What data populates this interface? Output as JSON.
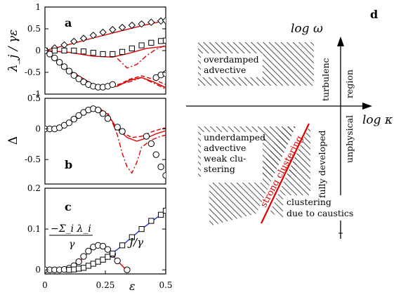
{
  "colors": {
    "axis": "#000000",
    "fit_red": "#dd0000",
    "fit_blue": "#1a33dd",
    "hatch": "#222222"
  },
  "chart_data": [
    {
      "type": "scatter",
      "panel": "a",
      "ylabel": "λ_j / γε",
      "xlim": [
        0,
        0.5
      ],
      "ylim": [
        -1,
        1
      ],
      "yticks": [
        "1",
        "0.5",
        "0",
        "-0.5",
        "-1"
      ],
      "series": [
        {
          "marker": "diamond",
          "x": [
            0.0,
            0.04,
            0.08,
            0.12,
            0.16,
            0.2,
            0.24,
            0.28,
            0.32,
            0.36,
            0.4,
            0.44,
            0.48,
            0.5
          ],
          "y": [
            0.0,
            0.06,
            0.13,
            0.21,
            0.28,
            0.35,
            0.42,
            0.48,
            0.53,
            0.58,
            0.61,
            0.65,
            0.68,
            0.69
          ]
        },
        {
          "marker": "square",
          "x": [
            0.0,
            0.04,
            0.08,
            0.12,
            0.16,
            0.2,
            0.24,
            0.28,
            0.32,
            0.36,
            0.4,
            0.44,
            0.48,
            0.5
          ],
          "y": [
            0.0,
            0.0,
            0.0,
            0.0,
            -0.02,
            -0.05,
            -0.08,
            -0.08,
            -0.03,
            0.05,
            0.12,
            0.18,
            0.22,
            0.23
          ]
        },
        {
          "marker": "circle",
          "x": [
            0.0,
            0.02,
            0.04,
            0.06,
            0.08,
            0.1,
            0.12,
            0.14,
            0.16,
            0.18,
            0.2,
            0.22,
            0.24,
            0.26,
            0.28,
            0.46,
            0.48,
            0.5
          ],
          "y": [
            0.0,
            -0.08,
            -0.17,
            -0.27,
            -0.37,
            -0.47,
            -0.57,
            -0.65,
            -0.72,
            -0.78,
            -0.82,
            -0.84,
            -0.84,
            -0.82,
            -0.78,
            -0.62,
            -0.56,
            -0.53
          ]
        }
      ],
      "fits": [
        {
          "style": "solid",
          "x": [
            0.0,
            0.1,
            0.2,
            0.3,
            0.4,
            0.5
          ],
          "y": [
            0.0,
            0.14,
            0.29,
            0.43,
            0.57,
            0.69
          ]
        },
        {
          "style": "solid",
          "x": [
            0.0,
            0.1,
            0.2,
            0.28,
            0.35,
            0.42,
            0.5
          ],
          "y": [
            0.0,
            -0.04,
            -0.13,
            -0.15,
            -0.06,
            0.05,
            0.1
          ]
        },
        {
          "style": "dashdot",
          "x": [
            0.3,
            0.34,
            0.38,
            0.42,
            0.46,
            0.5
          ],
          "y": [
            -0.18,
            -0.4,
            -0.32,
            -0.12,
            0.03,
            0.12
          ]
        },
        {
          "style": "solid",
          "x": [
            0.0,
            0.1,
            0.2,
            0.25,
            0.3,
            0.35,
            0.4,
            0.45,
            0.5
          ],
          "y": [
            0.0,
            -0.45,
            -0.78,
            -0.84,
            -0.82,
            -0.68,
            -0.62,
            -0.72,
            -0.85
          ]
        },
        {
          "style": "dashed",
          "x": [
            0.3,
            0.35,
            0.4,
            0.45,
            0.5
          ],
          "y": [
            -0.8,
            -0.66,
            -0.58,
            -0.66,
            -0.78
          ]
        },
        {
          "style": "dashdot",
          "x": [
            0.3,
            0.35,
            0.4,
            0.45,
            0.5
          ],
          "y": [
            -0.78,
            -0.72,
            -0.62,
            -0.75,
            -0.88
          ]
        }
      ]
    },
    {
      "type": "scatter",
      "panel": "b",
      "ylabel": "Δ",
      "xlim": [
        0,
        0.5
      ],
      "ylim": [
        -0.9,
        0.5
      ],
      "yticks": [
        "0.5",
        "0",
        "-0.5"
      ],
      "series": [
        {
          "marker": "circle",
          "x": [
            0.0,
            0.02,
            0.04,
            0.06,
            0.08,
            0.1,
            0.12,
            0.14,
            0.16,
            0.18,
            0.2,
            0.22,
            0.24,
            0.26,
            0.3,
            0.32,
            0.42,
            0.44,
            0.46,
            0.48,
            0.5
          ],
          "y": [
            0.0,
            0.0,
            0.0,
            0.02,
            0.06,
            0.1,
            0.16,
            0.22,
            0.27,
            0.31,
            0.33,
            0.31,
            0.25,
            0.17,
            0.03,
            -0.04,
            -0.12,
            -0.24,
            -0.42,
            -0.62,
            -0.76
          ]
        }
      ],
      "fits": [
        {
          "style": "solid",
          "x": [
            0.0,
            0.06,
            0.12,
            0.18,
            0.22,
            0.26,
            0.3,
            0.34,
            0.38,
            0.42,
            0.46,
            0.5
          ],
          "y": [
            0.0,
            0.03,
            0.14,
            0.3,
            0.35,
            0.24,
            0.0,
            -0.14,
            -0.2,
            -0.15,
            -0.08,
            -0.03
          ]
        },
        {
          "style": "dashed",
          "x": [
            0.28,
            0.32,
            0.36,
            0.4,
            0.44,
            0.48,
            0.5
          ],
          "y": [
            0.1,
            -0.06,
            -0.14,
            -0.12,
            -0.05,
            0.0,
            0.02
          ]
        },
        {
          "style": "dashdot",
          "x": [
            0.22,
            0.26,
            0.28,
            0.3,
            0.32,
            0.34,
            0.36,
            0.38,
            0.4,
            0.44,
            0.48,
            0.5
          ],
          "y": [
            0.32,
            0.26,
            0.1,
            -0.1,
            -0.4,
            -0.62,
            -0.72,
            -0.55,
            -0.3,
            -0.18,
            -0.12,
            -0.1
          ]
        }
      ]
    },
    {
      "type": "scatter",
      "panel": "c",
      "xlabel": "ε",
      "xlim": [
        0,
        0.5
      ],
      "ylim": [
        -0.01,
        0.2
      ],
      "xticks": [
        "0",
        "0.25",
        "0.5"
      ],
      "yticks": [
        "0.2",
        "0.1",
        "0"
      ],
      "annotations": [
        "−Σ_i λ_i / γ",
        "J/γ"
      ],
      "series": [
        {
          "marker": "circle",
          "x": [
            0.0,
            0.02,
            0.04,
            0.06,
            0.08,
            0.1,
            0.12,
            0.14,
            0.16,
            0.18,
            0.2,
            0.22,
            0.24,
            0.26,
            0.28,
            0.3,
            0.34
          ],
          "y": [
            0.0,
            0.0,
            0.0,
            0.0,
            0.001,
            0.004,
            0.01,
            0.02,
            0.033,
            0.046,
            0.056,
            0.06,
            0.058,
            0.05,
            0.038,
            0.022,
            0.0
          ]
        },
        {
          "marker": "square",
          "x": [
            0.1,
            0.12,
            0.14,
            0.16,
            0.18,
            0.2,
            0.22,
            0.24,
            0.26,
            0.28,
            0.32,
            0.36,
            0.4,
            0.44,
            0.48,
            0.5
          ],
          "y": [
            0.0,
            0.001,
            0.003,
            0.005,
            0.01,
            0.015,
            0.02,
            0.025,
            0.032,
            0.04,
            0.06,
            0.08,
            0.1,
            0.12,
            0.135,
            0.145
          ]
        }
      ],
      "fits": [
        {
          "style": "solid",
          "color": "red",
          "x": [
            0.0,
            0.1,
            0.15,
            0.2,
            0.23,
            0.26,
            0.3,
            0.33,
            0.34
          ],
          "y": [
            0.0,
            0.004,
            0.025,
            0.055,
            0.06,
            0.05,
            0.022,
            0.004,
            0.0
          ]
        },
        {
          "style": "solid",
          "color": "blue",
          "x": [
            0.25,
            0.3,
            0.35,
            0.4,
            0.45,
            0.5
          ],
          "y": [
            0.03,
            0.05,
            0.075,
            0.1,
            0.122,
            0.145
          ]
        }
      ]
    },
    {
      "type": "diagram",
      "panel": "d",
      "xlabel": "log κ",
      "ylabel": "log ω",
      "regions": [
        {
          "label": [
            "overdamped",
            "advective"
          ]
        },
        {
          "label": [
            "underdamped",
            "advective",
            "weak clu-",
            "stering"
          ]
        },
        {
          "label": [
            "strong clustering"
          ],
          "color": "red"
        },
        {
          "label": [
            "clustering",
            "due to caustics"
          ]
        },
        {
          "label": [
            "turbulenc"
          ]
        },
        {
          "label": [
            "fully developed"
          ]
        },
        {
          "label": [
            "region"
          ]
        },
        {
          "label": [
            "unphysical"
          ]
        }
      ]
    }
  ]
}
